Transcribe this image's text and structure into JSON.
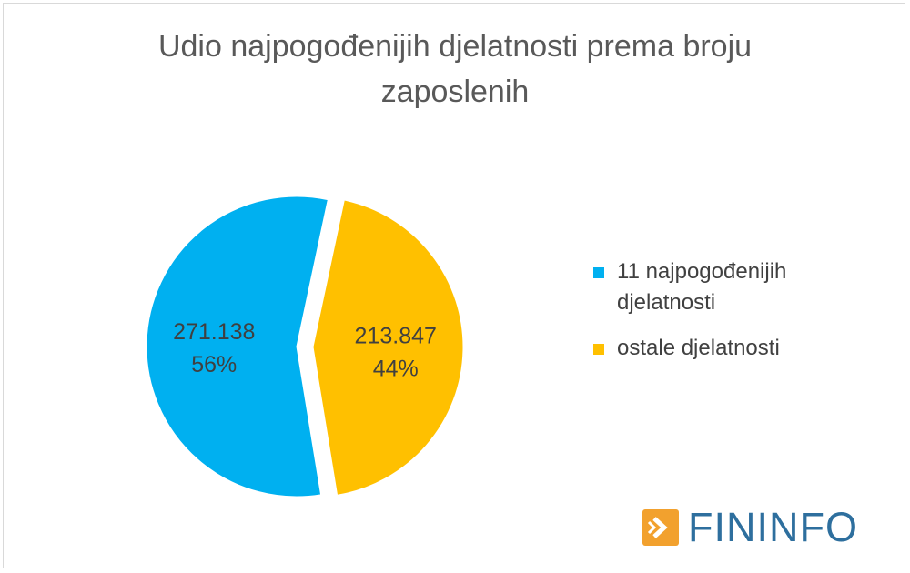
{
  "chart_data": {
    "type": "pie",
    "title": "Udio najpogođenijih djelatnosti prema broju zaposlenih",
    "title_lines": [
      "Udio najpogođenijih djelatnosti prema broju",
      "zaposlenih"
    ],
    "slices": [
      {
        "name": "11 najpogođenijih djelatnosti",
        "legend_lines": [
          "11 najpogođenijih",
          "djelatnosti"
        ],
        "value": 271138,
        "value_label": "271.138",
        "percent_label": "56%",
        "color": "#00b0f0",
        "exploded": false
      },
      {
        "name": "ostale djelatnosti",
        "legend_lines": [
          "ostale djelatnosti"
        ],
        "value": 213847,
        "value_label": "213.847",
        "percent_label": "44%",
        "color": "#ffc000",
        "exploded": true
      }
    ],
    "legend_position": "right"
  },
  "logo": {
    "text": "FININFO",
    "accent": "#f2a12e",
    "text_color": "#2e6f9e",
    "icon": "arrow-right-icon"
  }
}
